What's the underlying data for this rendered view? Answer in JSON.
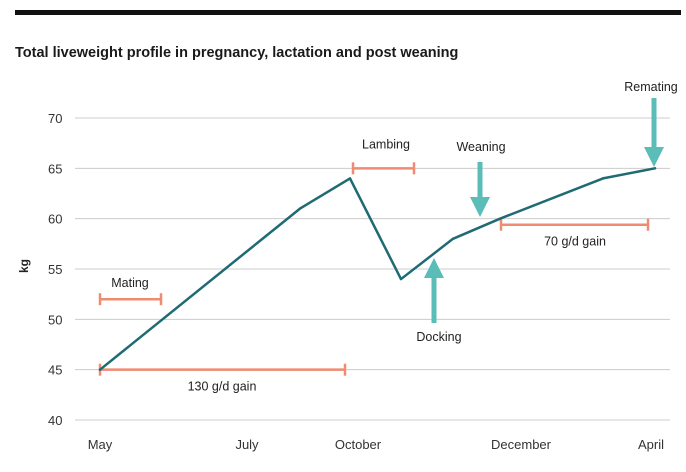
{
  "chart_data": {
    "type": "line",
    "title": "Total liveweight profile in pregnancy, lactation and post weaning",
    "ylabel": "kg",
    "xlabel": "",
    "ylim": [
      40,
      70
    ],
    "yticks": [
      40,
      45,
      50,
      55,
      60,
      65,
      70
    ],
    "xtick_labels": [
      "May",
      "July",
      "October",
      "December",
      "April"
    ],
    "grid": true,
    "series": [
      {
        "color": "#1f6b73",
        "points": [
          {
            "x": "May",
            "y": 45
          },
          {
            "x": "Sep",
            "y": 61
          },
          {
            "x": "Oct",
            "y": 64
          },
          {
            "x": "Nov",
            "y": 54
          },
          {
            "x": "Nov/Dec",
            "y": 58
          },
          {
            "x": "Dec",
            "y": 60
          },
          {
            "x": "Mar",
            "y": 64
          },
          {
            "x": "Apr",
            "y": 65
          }
        ]
      }
    ],
    "ranges": [
      {
        "label": "Mating",
        "y": 52
      },
      {
        "label": "130 g/d gain",
        "y": 45
      },
      {
        "label": "Lambing",
        "y": 65
      },
      {
        "label": "70 g/d gain",
        "y": 59.4
      }
    ],
    "events": [
      {
        "label": "Weaning",
        "direction": "down"
      },
      {
        "label": "Docking",
        "direction": "up"
      },
      {
        "label": "Remating",
        "direction": "down"
      }
    ],
    "colors": {
      "line": "#1f6b73",
      "range": "#f08a70",
      "arrow": "#5bbdb8",
      "grid": "#cccccc"
    }
  }
}
